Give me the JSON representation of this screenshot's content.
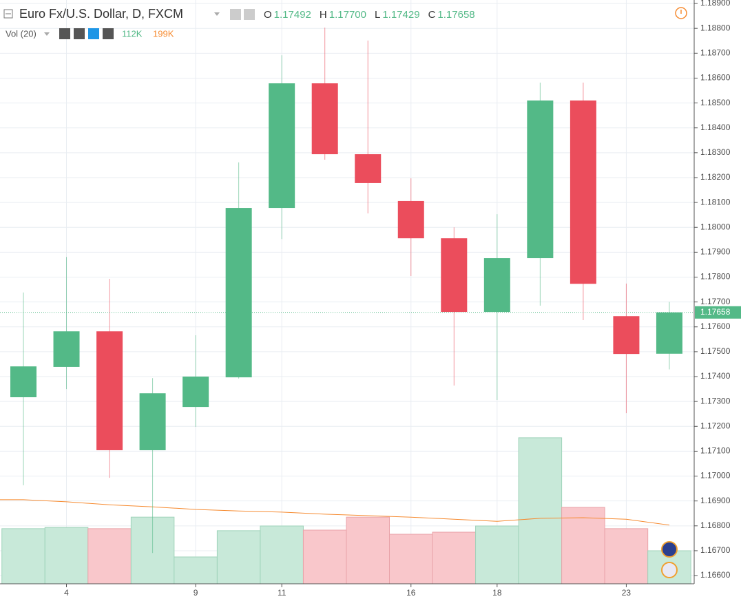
{
  "chart_data": {
    "type": "candlestick",
    "title": "Euro Fx/U.S. Dollar, D, FXCM",
    "categories": [
      null,
      "4",
      null,
      null,
      "9",
      null,
      "11",
      null,
      null,
      "16",
      null,
      "18",
      null,
      null,
      "23",
      null
    ],
    "open": [
      1.17317,
      1.17439,
      1.17582,
      1.17104,
      1.17278,
      1.17397,
      1.18078,
      1.18579,
      1.18294,
      1.18106,
      1.17956,
      1.1766,
      1.17876,
      1.1851,
      1.17643,
      1.17492
    ],
    "high": [
      1.17738,
      1.17881,
      1.17793,
      1.17394,
      1.17566,
      1.18261,
      1.18692,
      1.18803,
      1.18751,
      1.18197,
      1.18,
      1.18053,
      1.18582,
      1.18582,
      1.17774,
      1.177
    ],
    "low": [
      1.16963,
      1.1735,
      1.16993,
      1.16691,
      1.17198,
      1.17392,
      1.17953,
      1.18272,
      1.18056,
      1.17804,
      1.17364,
      1.17306,
      1.17685,
      1.17627,
      1.17253,
      1.17429
    ],
    "close": [
      1.17441,
      1.17582,
      1.17104,
      1.17333,
      1.174,
      1.18078,
      1.18579,
      1.18294,
      1.18178,
      1.17956,
      1.1766,
      1.17876,
      1.1851,
      1.17773,
      1.17491,
      1.17658
    ],
    "up_color": "#53b987",
    "down_color": "#eb4d5c",
    "ylim": [
      1.16567,
      1.18914
    ],
    "yticks": [
      {
        "value": 1.189,
        "label": "1.18900"
      },
      {
        "value": 1.188,
        "label": "1.18800"
      },
      {
        "value": 1.187,
        "label": "1.18700"
      },
      {
        "value": 1.186,
        "label": "1.18600"
      },
      {
        "value": 1.185,
        "label": "1.18500"
      },
      {
        "value": 1.184,
        "label": "1.18400"
      },
      {
        "value": 1.183,
        "label": "1.18300"
      },
      {
        "value": 1.182,
        "label": "1.18200"
      },
      {
        "value": 1.181,
        "label": "1.18100"
      },
      {
        "value": 1.18,
        "label": "1.18000"
      },
      {
        "value": 1.179,
        "label": "1.17900"
      },
      {
        "value": 1.178,
        "label": "1.17800"
      },
      {
        "value": 1.177,
        "label": "1.17700"
      },
      {
        "value": 1.176,
        "label": "1.17600"
      },
      {
        "value": 1.175,
        "label": "1.17500"
      },
      {
        "value": 1.174,
        "label": "1.17400"
      },
      {
        "value": 1.173,
        "label": "1.17300"
      },
      {
        "value": 1.172,
        "label": "1.17200"
      },
      {
        "value": 1.171,
        "label": "1.17100"
      },
      {
        "value": 1.17,
        "label": "1.17000"
      },
      {
        "value": 1.169,
        "label": "1.16900"
      },
      {
        "value": 1.168,
        "label": "1.16800"
      },
      {
        "value": 1.167,
        "label": "1.16700"
      },
      {
        "value": 1.166,
        "label": "1.16600"
      }
    ],
    "grid": true,
    "last_price_label": "1.17658",
    "ohlc_legend": [
      {
        "key": "O",
        "value": "1.17492"
      },
      {
        "key": "H",
        "value": "1.17700"
      },
      {
        "key": "L",
        "value": "1.17429"
      },
      {
        "key": "C",
        "value": "1.17658"
      }
    ],
    "volume": {
      "name": "Vol (20)",
      "values": [
        187000,
        191000,
        187000,
        226000,
        91000,
        180000,
        196000,
        182000,
        226000,
        168000,
        175000,
        196000,
        495000,
        259000,
        187000,
        112000
      ],
      "ma_values": [
        285000,
        278000,
        268000,
        261000,
        252000,
        247000,
        243000,
        236000,
        231000,
        226000,
        219000,
        212000,
        222000,
        224000,
        219000,
        199000
      ],
      "ylim": [
        0,
        2000000
      ],
      "value_label": "112K",
      "ma_label": "199K",
      "up_color": "#c8e9d9",
      "down_color": "#f9c7cb",
      "ma_color": "#f68a2f"
    }
  }
}
